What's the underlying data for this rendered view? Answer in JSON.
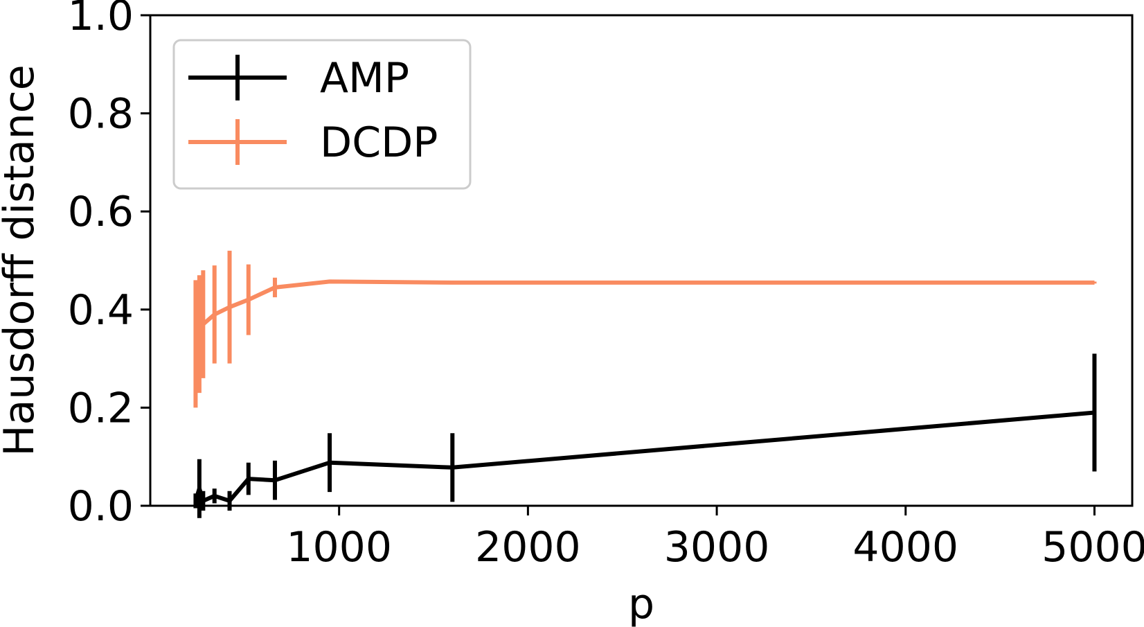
{
  "chart_data": {
    "type": "line",
    "xlabel": "p",
    "ylabel": "Hausdorff distance",
    "xlim": [
      0,
      5200
    ],
    "ylim": [
      0.0,
      1.0
    ],
    "xticks": [
      1000,
      2000,
      3000,
      4000,
      5000
    ],
    "xtick_labels": [
      "1000",
      "2000",
      "3000",
      "4000",
      "5000"
    ],
    "yticks": [
      0.0,
      0.2,
      0.4,
      0.6,
      0.8,
      1.0
    ],
    "ytick_labels": [
      "0.0",
      "0.2",
      "0.4",
      "0.6",
      "0.8",
      "1.0"
    ],
    "grid": false,
    "legend": "top-left",
    "series": [
      {
        "name": "AMP",
        "color": "#000000",
        "x": [
          240,
          260,
          280,
          340,
          420,
          520,
          660,
          950,
          1600,
          5000
        ],
        "y": [
          0.01,
          0.035,
          0.01,
          0.02,
          0.01,
          0.055,
          0.052,
          0.088,
          0.078,
          0.19
        ],
        "yerr": [
          0.015,
          0.06,
          0.02,
          0.015,
          0.02,
          0.033,
          0.04,
          0.06,
          0.07,
          0.12
        ]
      },
      {
        "name": "DCDP",
        "color": "#f98b60",
        "x": [
          240,
          260,
          280,
          340,
          420,
          520,
          660,
          950,
          1600,
          5000
        ],
        "y": [
          0.33,
          0.35,
          0.37,
          0.39,
          0.405,
          0.42,
          0.445,
          0.457,
          0.455,
          0.455
        ],
        "yerr": [
          0.13,
          0.12,
          0.11,
          0.1,
          0.115,
          0.072,
          0.02,
          0.003,
          0.002,
          0.002
        ]
      }
    ]
  }
}
